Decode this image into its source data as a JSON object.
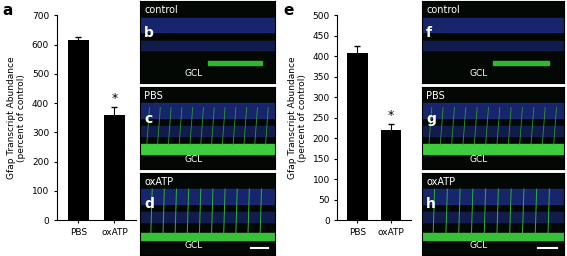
{
  "chart_data": [
    {
      "type": "bar",
      "panel": "a",
      "y_label": "Gfap Transcript Abundance\n(percent of control)",
      "categories": [
        "PBS",
        "oxATP"
      ],
      "values": [
        615,
        360
      ],
      "errors": [
        10,
        28
      ],
      "color": "#000000",
      "ylim": [
        0,
        700
      ],
      "yticks": [
        0,
        100,
        200,
        300,
        400,
        500,
        600,
        700
      ],
      "annotations": [
        {
          "category": "oxATP",
          "text": "*"
        }
      ]
    },
    {
      "type": "bar",
      "panel": "e",
      "y_label": "Gfap Transcript Abundance\n(percent of control)",
      "categories": [
        "PBS",
        "oxATP"
      ],
      "values": [
        407,
        220
      ],
      "errors": [
        18,
        15
      ],
      "color": "#000000",
      "ylim": [
        0,
        500
      ],
      "yticks": [
        0,
        50,
        100,
        150,
        200,
        250,
        300,
        350,
        400,
        450,
        500
      ],
      "annotations": [
        {
          "category": "oxATP",
          "text": "*"
        }
      ]
    }
  ],
  "image_panels": [
    [
      {
        "panel": "b",
        "label": "control",
        "region": "GCL"
      },
      {
        "panel": "c",
        "label": "PBS",
        "region": "GCL"
      },
      {
        "panel": "d",
        "label": "oxATP",
        "region": "GCL"
      }
    ],
    [
      {
        "panel": "f",
        "label": "control",
        "region": "GCL"
      },
      {
        "panel": "g",
        "label": "PBS",
        "region": "GCL"
      },
      {
        "panel": "h",
        "label": "oxATP",
        "region": "GCL"
      }
    ]
  ]
}
